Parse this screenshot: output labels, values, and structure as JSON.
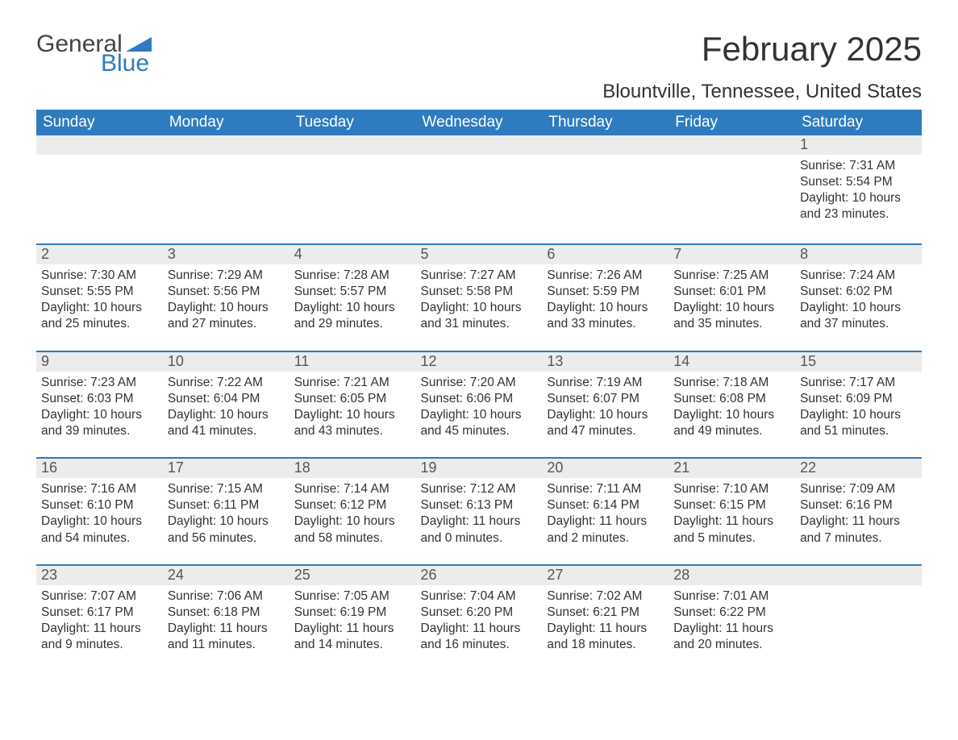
{
  "logo": {
    "word1": "General",
    "word2": "Blue",
    "sail_color": "#2e7bbf"
  },
  "title": "February 2025",
  "location": "Blountville, Tennessee, United States",
  "colors": {
    "header_bg": "#2e7bbf",
    "header_text": "#ffffff",
    "daynum_bg": "#ececec",
    "row_divider": "#2e7bbf",
    "body_text": "#333333"
  },
  "typography": {
    "title_fontsize": 42,
    "location_fontsize": 24,
    "dayheader_fontsize": 19,
    "daynum_fontsize": 18,
    "body_fontsize": 15.5
  },
  "day_headers": [
    "Sunday",
    "Monday",
    "Tuesday",
    "Wednesday",
    "Thursday",
    "Friday",
    "Saturday"
  ],
  "weeks": [
    [
      null,
      null,
      null,
      null,
      null,
      null,
      {
        "n": "1",
        "sunrise": "7:31 AM",
        "sunset": "5:54 PM",
        "daylight": "10 hours and 23 minutes."
      }
    ],
    [
      {
        "n": "2",
        "sunrise": "7:30 AM",
        "sunset": "5:55 PM",
        "daylight": "10 hours and 25 minutes."
      },
      {
        "n": "3",
        "sunrise": "7:29 AM",
        "sunset": "5:56 PM",
        "daylight": "10 hours and 27 minutes."
      },
      {
        "n": "4",
        "sunrise": "7:28 AM",
        "sunset": "5:57 PM",
        "daylight": "10 hours and 29 minutes."
      },
      {
        "n": "5",
        "sunrise": "7:27 AM",
        "sunset": "5:58 PM",
        "daylight": "10 hours and 31 minutes."
      },
      {
        "n": "6",
        "sunrise": "7:26 AM",
        "sunset": "5:59 PM",
        "daylight": "10 hours and 33 minutes."
      },
      {
        "n": "7",
        "sunrise": "7:25 AM",
        "sunset": "6:01 PM",
        "daylight": "10 hours and 35 minutes."
      },
      {
        "n": "8",
        "sunrise": "7:24 AM",
        "sunset": "6:02 PM",
        "daylight": "10 hours and 37 minutes."
      }
    ],
    [
      {
        "n": "9",
        "sunrise": "7:23 AM",
        "sunset": "6:03 PM",
        "daylight": "10 hours and 39 minutes."
      },
      {
        "n": "10",
        "sunrise": "7:22 AM",
        "sunset": "6:04 PM",
        "daylight": "10 hours and 41 minutes."
      },
      {
        "n": "11",
        "sunrise": "7:21 AM",
        "sunset": "6:05 PM",
        "daylight": "10 hours and 43 minutes."
      },
      {
        "n": "12",
        "sunrise": "7:20 AM",
        "sunset": "6:06 PM",
        "daylight": "10 hours and 45 minutes."
      },
      {
        "n": "13",
        "sunrise": "7:19 AM",
        "sunset": "6:07 PM",
        "daylight": "10 hours and 47 minutes."
      },
      {
        "n": "14",
        "sunrise": "7:18 AM",
        "sunset": "6:08 PM",
        "daylight": "10 hours and 49 minutes."
      },
      {
        "n": "15",
        "sunrise": "7:17 AM",
        "sunset": "6:09 PM",
        "daylight": "10 hours and 51 minutes."
      }
    ],
    [
      {
        "n": "16",
        "sunrise": "7:16 AM",
        "sunset": "6:10 PM",
        "daylight": "10 hours and 54 minutes."
      },
      {
        "n": "17",
        "sunrise": "7:15 AM",
        "sunset": "6:11 PM",
        "daylight": "10 hours and 56 minutes."
      },
      {
        "n": "18",
        "sunrise": "7:14 AM",
        "sunset": "6:12 PM",
        "daylight": "10 hours and 58 minutes."
      },
      {
        "n": "19",
        "sunrise": "7:12 AM",
        "sunset": "6:13 PM",
        "daylight": "11 hours and 0 minutes."
      },
      {
        "n": "20",
        "sunrise": "7:11 AM",
        "sunset": "6:14 PM",
        "daylight": "11 hours and 2 minutes."
      },
      {
        "n": "21",
        "sunrise": "7:10 AM",
        "sunset": "6:15 PM",
        "daylight": "11 hours and 5 minutes."
      },
      {
        "n": "22",
        "sunrise": "7:09 AM",
        "sunset": "6:16 PM",
        "daylight": "11 hours and 7 minutes."
      }
    ],
    [
      {
        "n": "23",
        "sunrise": "7:07 AM",
        "sunset": "6:17 PM",
        "daylight": "11 hours and 9 minutes."
      },
      {
        "n": "24",
        "sunrise": "7:06 AM",
        "sunset": "6:18 PM",
        "daylight": "11 hours and 11 minutes."
      },
      {
        "n": "25",
        "sunrise": "7:05 AM",
        "sunset": "6:19 PM",
        "daylight": "11 hours and 14 minutes."
      },
      {
        "n": "26",
        "sunrise": "7:04 AM",
        "sunset": "6:20 PM",
        "daylight": "11 hours and 16 minutes."
      },
      {
        "n": "27",
        "sunrise": "7:02 AM",
        "sunset": "6:21 PM",
        "daylight": "11 hours and 18 minutes."
      },
      {
        "n": "28",
        "sunrise": "7:01 AM",
        "sunset": "6:22 PM",
        "daylight": "11 hours and 20 minutes."
      },
      null
    ]
  ],
  "labels": {
    "sunrise": "Sunrise: ",
    "sunset": "Sunset: ",
    "daylight": "Daylight: "
  }
}
